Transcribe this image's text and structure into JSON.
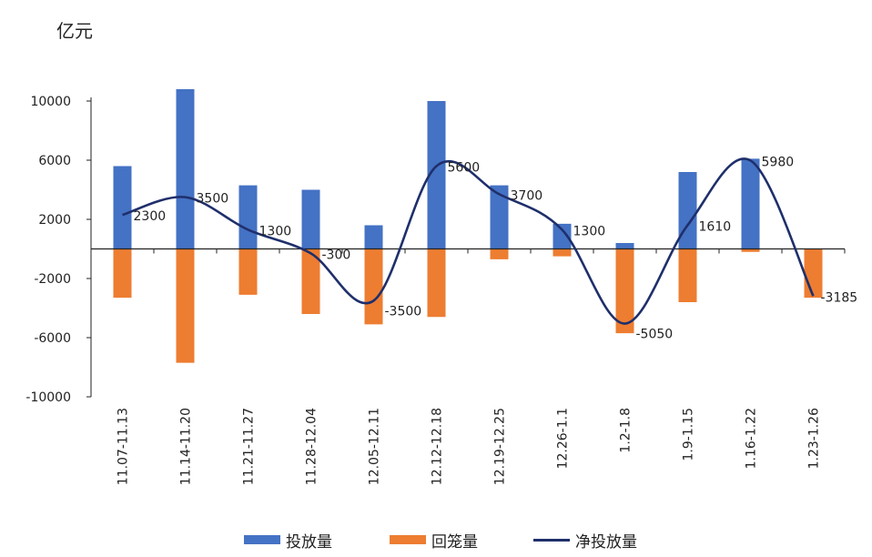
{
  "chart_data": {
    "type": "bar+line",
    "unit_label": "亿元",
    "categories": [
      "11.07-11.13",
      "11.14-11.20",
      "11.21-11.27",
      "11.28-12.04",
      "12.05-12.11",
      "12.12-12.18",
      "12.19-12.25",
      "12.26-1.1",
      "1.2-1.8",
      "1.9-1.15",
      "1.16-1.22",
      "1.23-1.26"
    ],
    "series": [
      {
        "name": "投放量",
        "type": "bar",
        "color": "#4472C4",
        "values": [
          5600,
          10800,
          4300,
          4000,
          1600,
          10000,
          4300,
          1700,
          400,
          5200,
          6100,
          0
        ]
      },
      {
        "name": "回笼量",
        "type": "bar",
        "color": "#ED7D31",
        "values": [
          -3300,
          -7700,
          -3100,
          -4400,
          -5100,
          -4600,
          -700,
          -500,
          -5700,
          -3600,
          -200,
          -3300
        ]
      },
      {
        "name": "净投放量",
        "type": "line",
        "color": "#1F2F6B",
        "values": [
          2300,
          3500,
          1300,
          -300,
          -3500,
          5600,
          3700,
          1300,
          -5050,
          1610,
          5980,
          -3185
        ],
        "labels": [
          "2300",
          "3500",
          "1300",
          "-300",
          "-3500",
          "5600",
          "3700",
          "1300",
          "-5050",
          "1610",
          "5980",
          "-3185"
        ]
      }
    ],
    "ylim": [
      -10000,
      10000
    ],
    "yticks": [
      10000,
      6000,
      2000,
      -2000,
      -6000,
      -10000
    ],
    "ytick_labels": [
      "10000",
      "6000",
      "2000",
      "-2000",
      "-6000",
      "-10000"
    ],
    "grid": false,
    "legend_position": "bottom"
  }
}
